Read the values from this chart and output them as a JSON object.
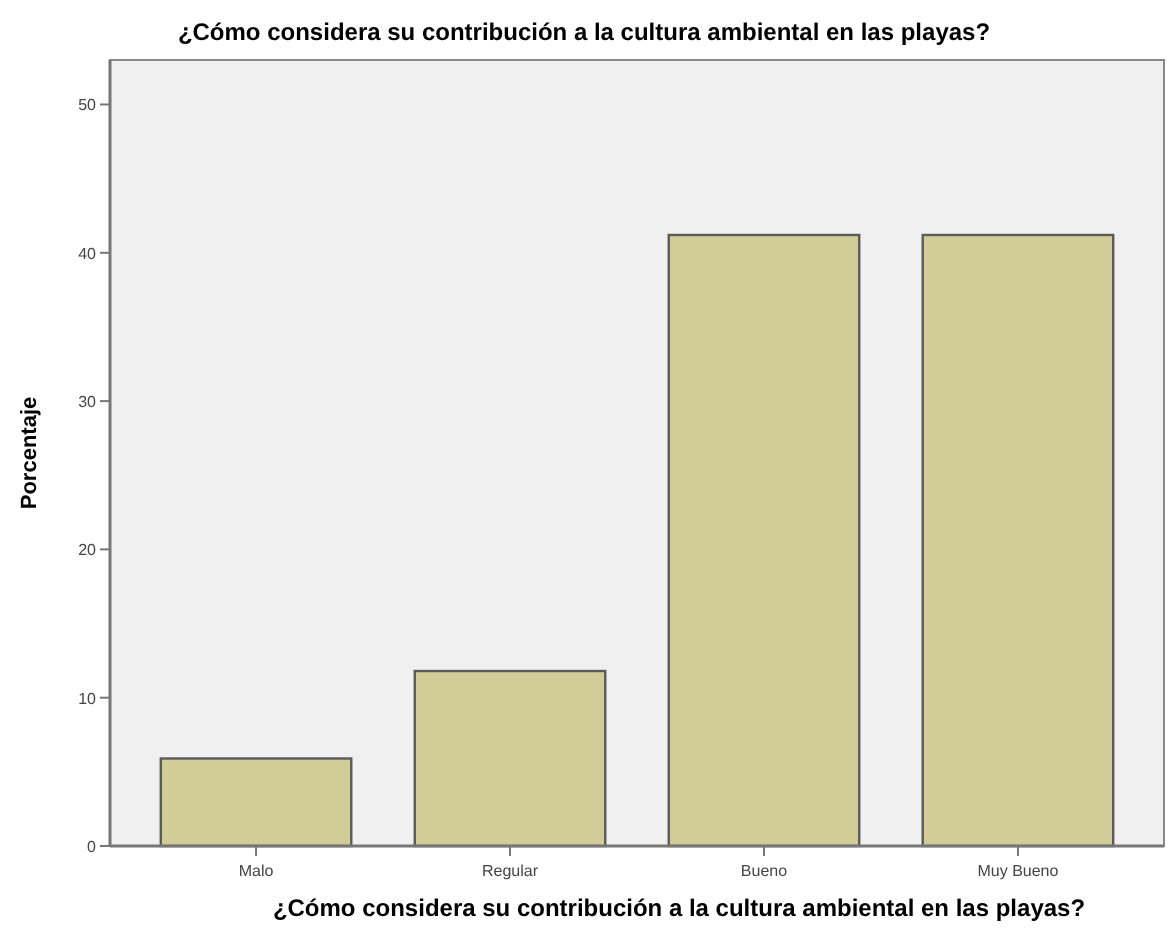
{
  "chart_data": {
    "type": "bar",
    "title": "¿Cómo considera su contribución a la cultura ambiental en las playas?",
    "xlabel": "¿Cómo considera su contribución a la cultura ambiental en las playas?",
    "ylabel": "Porcentaje",
    "categories": [
      "Malo",
      "Regular",
      "Bueno",
      "Muy Bueno"
    ],
    "values": [
      5.9,
      11.8,
      41.2,
      41.2
    ],
    "color": "#d2cc98",
    "ylim": [
      0,
      53
    ],
    "yticks": [
      0,
      10,
      20,
      30,
      40,
      50
    ],
    "grid": false
  }
}
